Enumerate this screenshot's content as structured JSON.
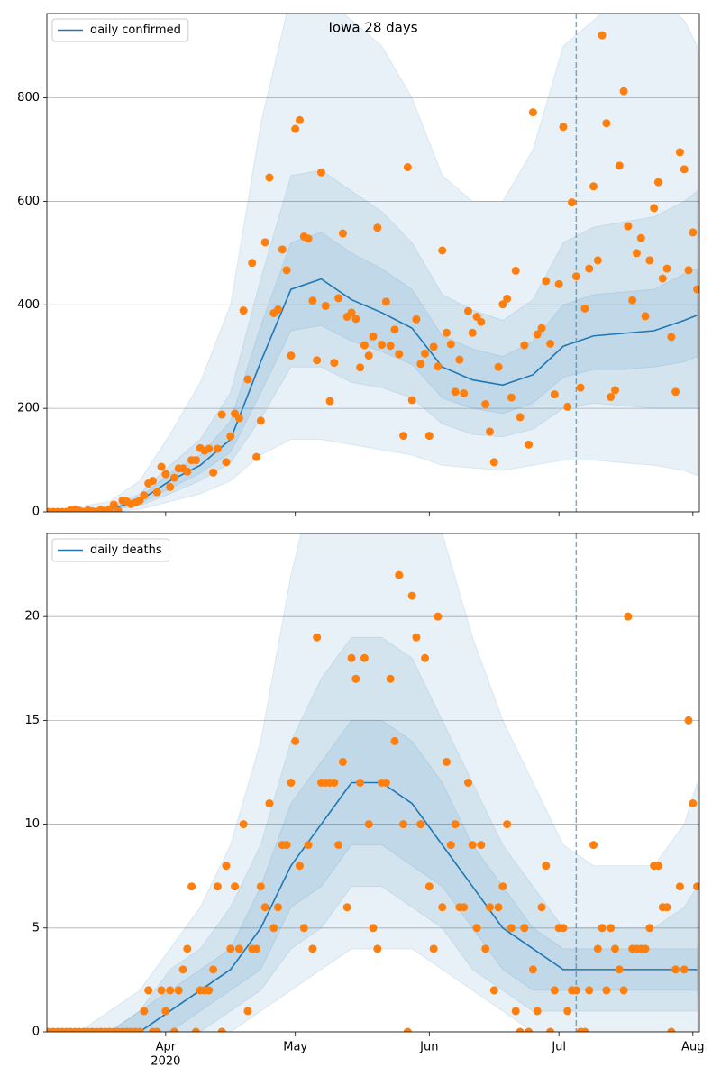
{
  "chart_data": [
    {
      "type": "line",
      "title": "Iowa 28 days",
      "xlim": [
        3.5,
        154.5
      ],
      "ylim": [
        0,
        963
      ],
      "yticks": [
        0,
        200,
        400,
        600,
        800
      ],
      "xticks": [
        31,
        61,
        92,
        122,
        153
      ],
      "xtick_labels": false,
      "grid": true,
      "legend": "upper left",
      "observed": {
        "color": "#ff7f0e",
        "x": [
          4,
          5,
          6,
          7,
          8,
          9,
          10,
          11,
          12,
          13,
          14,
          15,
          16,
          17,
          18,
          19,
          20,
          21,
          22,
          23,
          24,
          25,
          26,
          27,
          28,
          29,
          30,
          31,
          32,
          33,
          34,
          35,
          36,
          37,
          38,
          39,
          40,
          41,
          42,
          43,
          44,
          45,
          46,
          47,
          48,
          49,
          50,
          51,
          52,
          53,
          54,
          55,
          56,
          57,
          58,
          59,
          60,
          61,
          62,
          63,
          64,
          65,
          66,
          67,
          68,
          69,
          70,
          71,
          72,
          73,
          74,
          75,
          76,
          77,
          78,
          79,
          80,
          81,
          82,
          83,
          84,
          85,
          86,
          87,
          88,
          89,
          90,
          91,
          92,
          93,
          94,
          95,
          96,
          97,
          98,
          99,
          100,
          101,
          102,
          103,
          104,
          105,
          106,
          107,
          108,
          109,
          110,
          111,
          112,
          113,
          114,
          115,
          116,
          117,
          118,
          119,
          120,
          121,
          122,
          123,
          124,
          125,
          126,
          127,
          128,
          129,
          130,
          131,
          132,
          133,
          134,
          135,
          136,
          137,
          138,
          139,
          140,
          141,
          142,
          143,
          144,
          145,
          146,
          147,
          148,
          149,
          150,
          151,
          152,
          153,
          154
        ],
        "values": [
          0,
          0,
          0,
          0,
          0,
          3,
          5,
          2,
          0,
          3,
          1,
          0,
          4,
          2,
          5,
          14,
          2,
          22,
          20,
          15,
          18,
          22,
          32,
          55,
          60,
          38,
          87,
          73,
          48,
          66,
          84,
          84,
          78,
          100,
          100,
          123,
          118,
          122,
          76,
          122,
          188,
          96,
          146,
          190,
          181,
          389,
          256,
          481,
          106,
          176,
          521,
          646,
          384,
          391,
          507,
          467,
          302,
          740,
          757,
          532,
          528,
          408,
          293,
          656,
          398,
          214,
          288,
          413,
          538,
          377,
          385,
          373,
          279,
          322,
          302,
          339,
          549,
          323,
          406,
          321,
          352,
          305,
          147,
          666,
          216,
          372,
          286,
          306,
          147,
          319,
          281,
          505,
          346,
          324,
          232,
          294,
          229,
          388,
          346,
          377,
          367,
          208,
          155,
          96,
          280,
          401,
          412,
          221,
          466,
          183,
          322,
          130,
          772,
          343,
          355,
          446,
          325,
          227,
          440,
          744,
          203,
          598,
          455,
          240,
          393,
          470,
          629,
          486,
          921,
          751,
          222,
          235,
          669,
          813,
          552,
          409,
          500,
          529,
          378,
          486,
          587,
          637,
          451,
          470,
          338,
          232,
          695,
          662,
          467,
          540,
          430
        ]
      },
      "model_x": [
        4,
        11,
        18,
        25,
        32,
        39,
        46,
        53,
        60,
        67,
        74,
        81,
        88,
        95,
        102,
        109,
        116,
        123,
        130,
        137,
        144,
        151,
        154
      ],
      "series": [
        {
          "name": "daily confirmed",
          "color": "#1f77b4",
          "values": [
            0,
            2,
            5,
            22,
            60,
            90,
            140,
            290,
            430,
            450,
            410,
            385,
            355,
            280,
            255,
            245,
            265,
            320,
            340,
            345,
            350,
            370,
            380
          ]
        }
      ],
      "bands": [
        {
          "lower": [
            0,
            0,
            0,
            5,
            20,
            35,
            60,
            110,
            140,
            140,
            130,
            120,
            110,
            90,
            85,
            80,
            90,
            100,
            100,
            95,
            90,
            80,
            70
          ],
          "upper": [
            0,
            10,
            20,
            60,
            150,
            250,
            400,
            750,
            1000,
            1000,
            950,
            900,
            800,
            650,
            600,
            600,
            700,
            900,
            950,
            1000,
            1000,
            950,
            900
          ]
        },
        {
          "lower": [
            0,
            0,
            2,
            12,
            35,
            60,
            95,
            180,
            280,
            280,
            250,
            240,
            220,
            170,
            150,
            145,
            160,
            200,
            210,
            205,
            200,
            200,
            200
          ],
          "upper": [
            0,
            5,
            10,
            35,
            90,
            140,
            230,
            450,
            650,
            660,
            620,
            580,
            520,
            420,
            390,
            370,
            410,
            520,
            550,
            560,
            570,
            600,
            620
          ]
        },
        {
          "lower": [
            0,
            1,
            3,
            16,
            45,
            75,
            115,
            230,
            350,
            360,
            330,
            310,
            285,
            220,
            200,
            190,
            210,
            260,
            275,
            275,
            280,
            290,
            300
          ],
          "upper": [
            0,
            3,
            7,
            28,
            75,
            110,
            175,
            360,
            520,
            540,
            500,
            470,
            430,
            340,
            315,
            300,
            330,
            400,
            420,
            425,
            430,
            460,
            470
          ]
        }
      ],
      "band_color": "#1f77b4",
      "vline": {
        "x": 126,
        "color": "#1f77b4",
        "dashed": true
      }
    },
    {
      "type": "line",
      "xlim": [
        3.5,
        154.5
      ],
      "ylim": [
        0,
        24
      ],
      "yticks": [
        0,
        5,
        10,
        15,
        20
      ],
      "xticks": [
        {
          "value": 31,
          "label": "Apr"
        },
        {
          "value": 61,
          "label": "May"
        },
        {
          "value": 92,
          "label": "Jun"
        },
        {
          "value": 122,
          "label": "Jul"
        },
        {
          "value": 153,
          "label": "Aug"
        }
      ],
      "xtick_sublabel": "2020",
      "grid": true,
      "legend": "upper left",
      "observed": {
        "color": "#ff7f0e",
        "x": [
          4,
          5,
          6,
          7,
          8,
          9,
          10,
          11,
          12,
          13,
          14,
          15,
          16,
          17,
          18,
          19,
          20,
          21,
          22,
          23,
          24,
          25,
          26,
          27,
          28,
          29,
          30,
          31,
          32,
          33,
          34,
          35,
          36,
          37,
          38,
          39,
          40,
          41,
          42,
          43,
          44,
          45,
          46,
          47,
          48,
          49,
          50,
          51,
          52,
          53,
          54,
          55,
          56,
          57,
          58,
          59,
          60,
          61,
          62,
          63,
          64,
          65,
          66,
          67,
          68,
          69,
          70,
          71,
          72,
          73,
          74,
          75,
          76,
          77,
          78,
          79,
          80,
          81,
          82,
          83,
          84,
          85,
          86,
          87,
          88,
          89,
          90,
          91,
          92,
          93,
          94,
          95,
          96,
          97,
          98,
          99,
          100,
          101,
          102,
          103,
          104,
          105,
          106,
          107,
          108,
          109,
          110,
          111,
          112,
          113,
          114,
          115,
          116,
          117,
          118,
          119,
          120,
          121,
          122,
          123,
          124,
          125,
          126,
          127,
          128,
          129,
          130,
          131,
          132,
          133,
          134,
          135,
          136,
          137,
          138,
          139,
          140,
          141,
          142,
          143,
          144,
          145,
          146,
          147,
          148,
          149,
          150,
          151,
          152,
          153,
          154
        ],
        "values": [
          0,
          0,
          0,
          0,
          0,
          0,
          0,
          0,
          0,
          0,
          0,
          0,
          0,
          0,
          0,
          0,
          0,
          0,
          0,
          0,
          0,
          0,
          1,
          2,
          0,
          0,
          2,
          1,
          2,
          0,
          2,
          3,
          4,
          7,
          0,
          2,
          2,
          2,
          3,
          7,
          0,
          8,
          4,
          7,
          4,
          10,
          1,
          4,
          4,
          7,
          6,
          11,
          5,
          6,
          9,
          9,
          12,
          14,
          8,
          5,
          9,
          4,
          19,
          12,
          12,
          12,
          12,
          9,
          13,
          6,
          18,
          17,
          12,
          18,
          10,
          5,
          4,
          12,
          12,
          17,
          14,
          22,
          10,
          0,
          21,
          19,
          10,
          18,
          7,
          4,
          20,
          6,
          13,
          9,
          10,
          6,
          6,
          12,
          9,
          5,
          9,
          4,
          6,
          2,
          6,
          7,
          10,
          5,
          1,
          0,
          5,
          0,
          3,
          1,
          6,
          8,
          0,
          2,
          5,
          5,
          1,
          2,
          2,
          0,
          0,
          2,
          9,
          4,
          5,
          2,
          5,
          4,
          3,
          2,
          20,
          4,
          4,
          4,
          4,
          5,
          8,
          8,
          6,
          6,
          0,
          3,
          7,
          3,
          15,
          11,
          7
        ]
      },
      "model_x": [
        4,
        11,
        18,
        25,
        32,
        39,
        46,
        53,
        60,
        67,
        74,
        81,
        88,
        95,
        102,
        109,
        116,
        123,
        130,
        137,
        144,
        151,
        154
      ],
      "series": [
        {
          "name": "daily deaths",
          "color": "#1f77b4",
          "values": [
            0,
            0,
            0,
            0,
            1,
            2,
            3,
            5,
            8,
            10,
            12,
            12,
            11,
            9,
            7,
            5,
            4,
            3,
            3,
            3,
            3,
            3,
            3
          ]
        }
      ],
      "bands": [
        {
          "lower": [
            0,
            0,
            0,
            0,
            0,
            0,
            0,
            1,
            2,
            3,
            4,
            4,
            4,
            3,
            2,
            1,
            0,
            0,
            0,
            0,
            0,
            0,
            0
          ],
          "upper": [
            0,
            0,
            1,
            2,
            4,
            6,
            9,
            14,
            22,
            28,
            30,
            30,
            28,
            24,
            19,
            15,
            12,
            9,
            8,
            8,
            8,
            10,
            12
          ]
        },
        {
          "lower": [
            0,
            0,
            0,
            0,
            0,
            0,
            1,
            2,
            4,
            5,
            7,
            7,
            6,
            5,
            3,
            2,
            1,
            1,
            1,
            1,
            1,
            1,
            1
          ],
          "upper": [
            0,
            0,
            0,
            1,
            3,
            4,
            6,
            9,
            14,
            17,
            19,
            19,
            18,
            15,
            12,
            9,
            7,
            5,
            5,
            5,
            5,
            6,
            7
          ]
        },
        {
          "lower": [
            0,
            0,
            0,
            0,
            0,
            1,
            2,
            3,
            6,
            7,
            9,
            9,
            8,
            7,
            5,
            3,
            2,
            2,
            2,
            2,
            2,
            2,
            2
          ],
          "upper": [
            0,
            0,
            0,
            1,
            2,
            3,
            4,
            7,
            11,
            13,
            15,
            15,
            14,
            12,
            9,
            7,
            5,
            4,
            4,
            4,
            4,
            4,
            4
          ]
        }
      ],
      "band_color": "#1f77b4",
      "vline": {
        "x": 126,
        "color": "#1f77b4",
        "dashed": true
      }
    }
  ]
}
